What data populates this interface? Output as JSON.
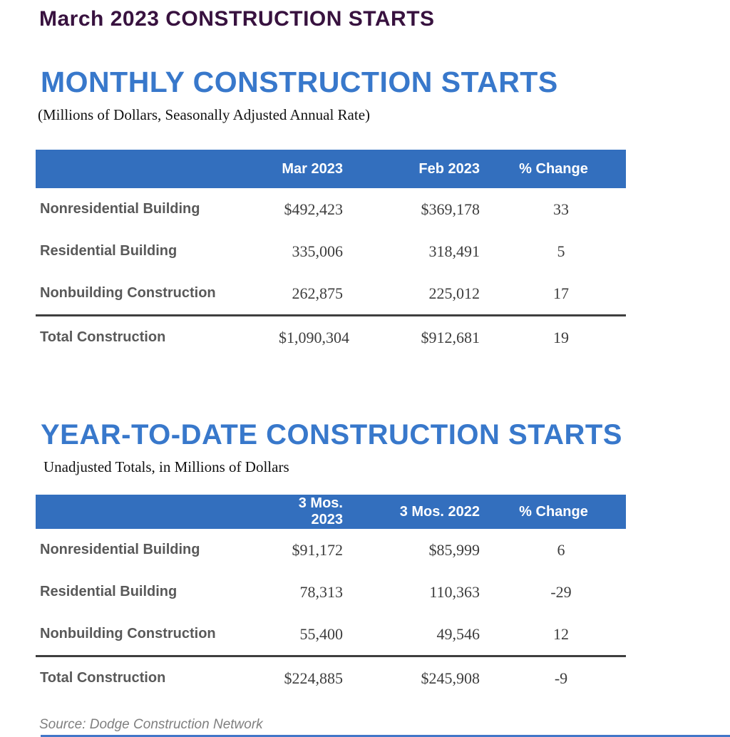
{
  "page": {
    "title": "March 2023 CONSTRUCTION STARTS",
    "source_note": "Source: Dodge Construction Network"
  },
  "colors": {
    "page_title_purple": "#38123F",
    "section_title_blue": "#3878CB",
    "table_header_blue": "#336FBE",
    "row_label_gray": "#595959",
    "value_gray": "#3D3D3D",
    "source_gray": "#7F7F7F"
  },
  "sections": [
    {
      "title": "MONTHLY CONSTRUCTION STARTS",
      "subtitle": "(Millions of Dollars, Seasonally Adjusted Annual Rate)",
      "columns": [
        "",
        "Mar 2023",
        "Feb 2023",
        "% Change"
      ],
      "rows": [
        {
          "label": "Nonresidential Building",
          "col1": "$492,423",
          "col2": "$369,178",
          "change": "33"
        },
        {
          "label": "Residential Building",
          "col1": "335,006",
          "col2": "318,491",
          "change": "5"
        },
        {
          "label": "Nonbuilding Construction",
          "col1": "262,875",
          "col2": "225,012",
          "change": "17"
        }
      ],
      "total": {
        "label": "Total Construction",
        "col1": "$1,090,304",
        "col2": "$912,681",
        "change": "19"
      }
    },
    {
      "title": "YEAR-TO-DATE CONSTRUCTION STARTS",
      "subtitle": "Unadjusted Totals, in Millions of Dollars",
      "columns": [
        "",
        "3 Mos. 2023",
        "3 Mos. 2022",
        "% Change"
      ],
      "rows": [
        {
          "label": "Nonresidential Building",
          "col1": "$91,172",
          "col2": "$85,999",
          "change": "6"
        },
        {
          "label": "Residential Building",
          "col1": "78,313",
          "col2": "110,363",
          "change": "-29"
        },
        {
          "label": "Nonbuilding Construction",
          "col1": "55,400",
          "col2": "49,546",
          "change": "12"
        }
      ],
      "total": {
        "label": "Total Construction",
        "col1": "$224,885",
        "col2": "$245,908",
        "change": "-9"
      }
    }
  ]
}
